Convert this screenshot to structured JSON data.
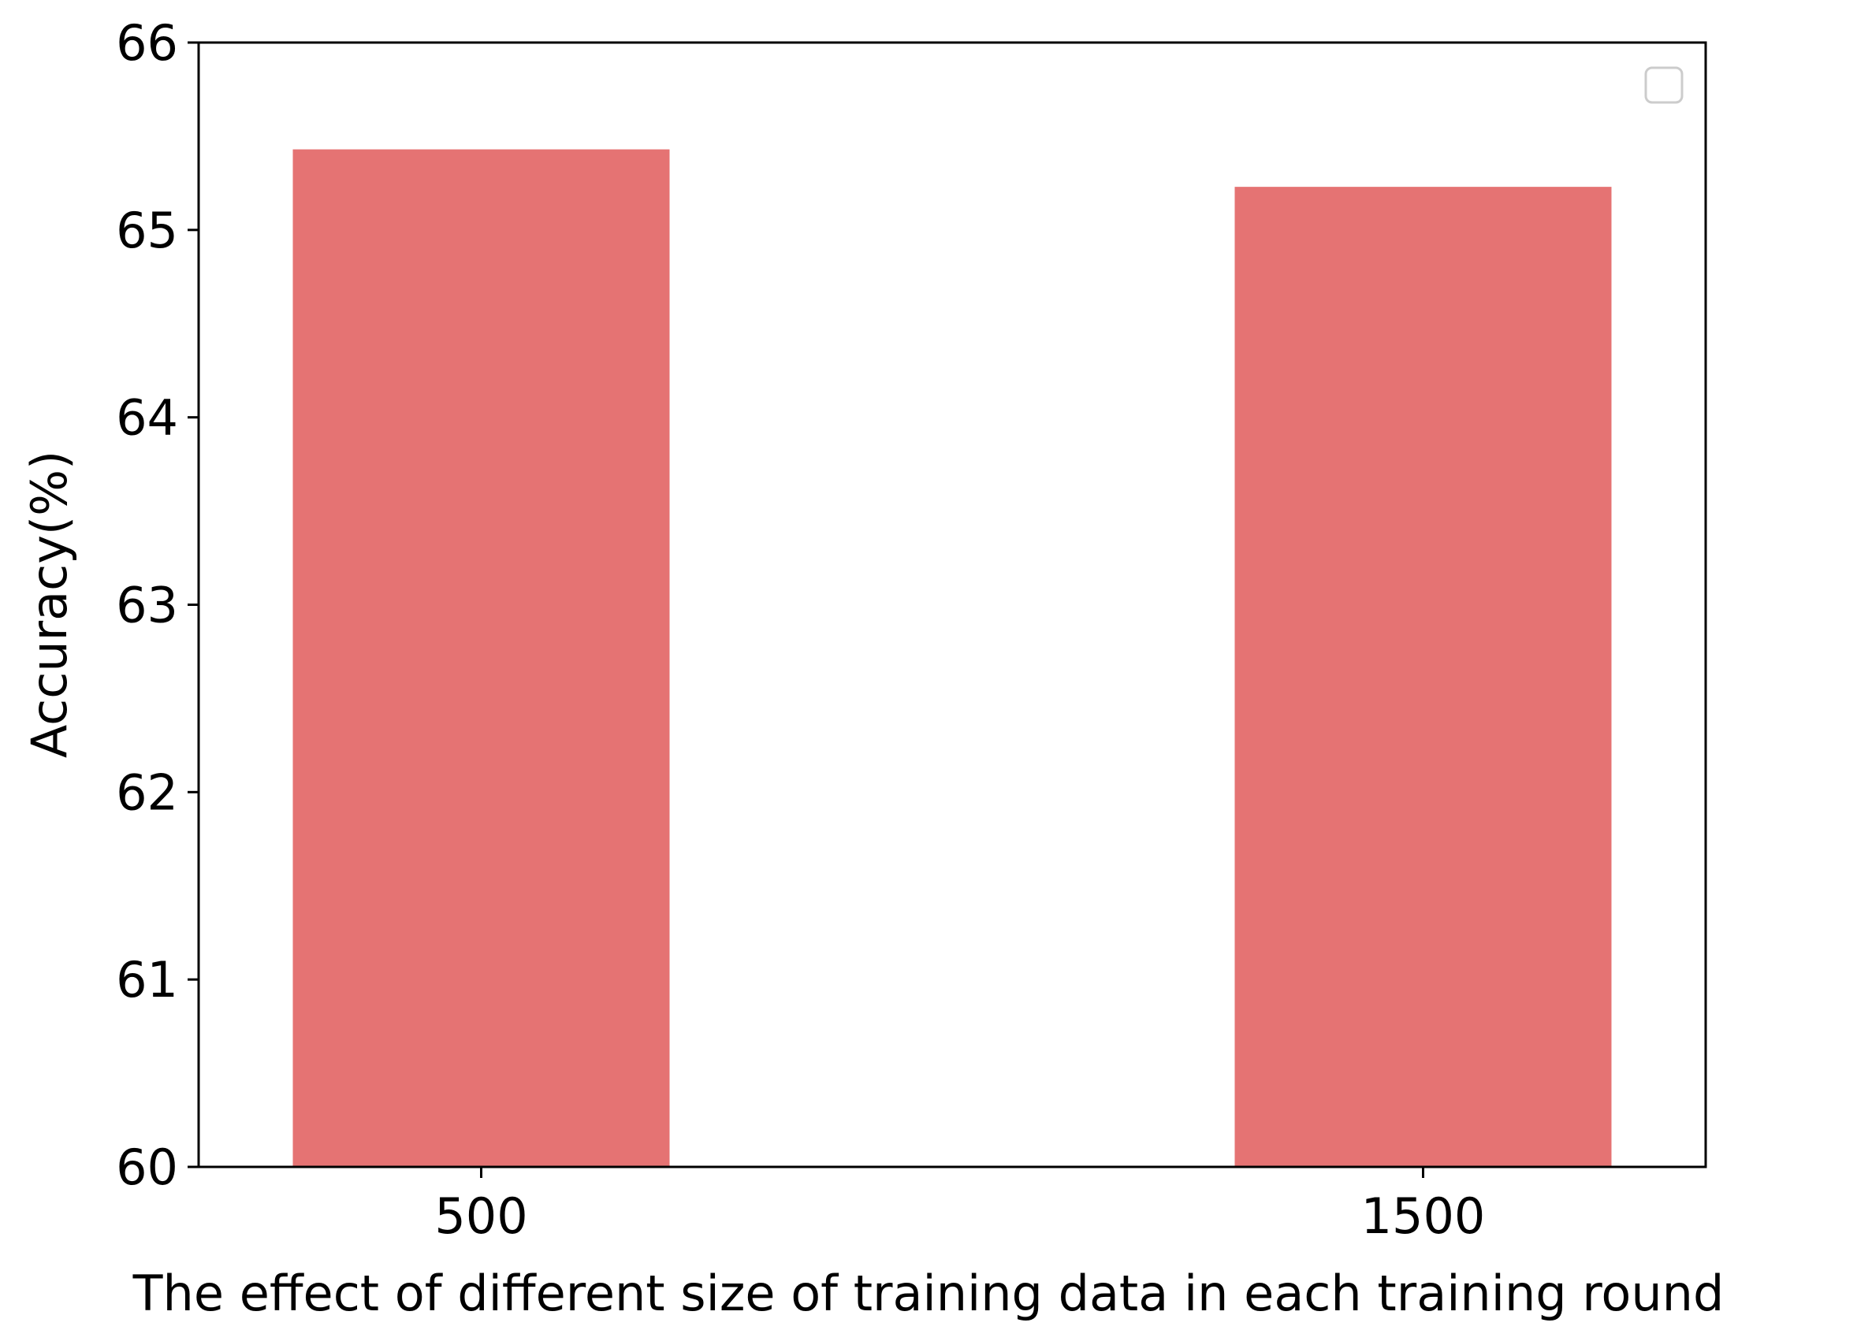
{
  "chart_data": {
    "type": "bar",
    "categories": [
      "500",
      "1500"
    ],
    "values": [
      65.43,
      65.23
    ],
    "title": "",
    "xlabel": "The effect of different size of training data in each training round",
    "ylabel": "Accuracy(%)",
    "ylim": [
      60,
      66
    ],
    "yticks": [
      "60",
      "61",
      "62",
      "63",
      "64",
      "65",
      "66"
    ],
    "grid": false,
    "legend": "top-right",
    "bar_color": "#e57373"
  }
}
